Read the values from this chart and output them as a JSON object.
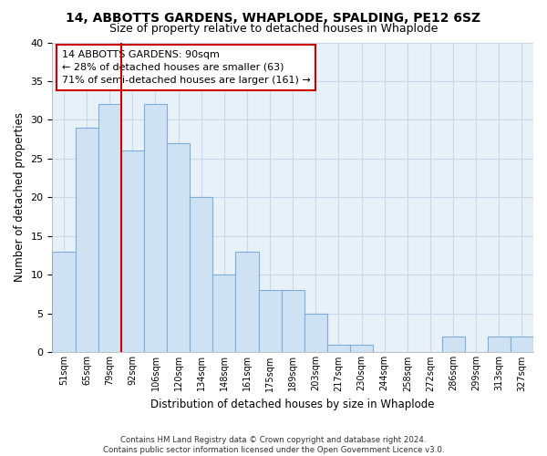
{
  "title1": "14, ABBOTTS GARDENS, WHAPLODE, SPALDING, PE12 6SZ",
  "title2": "Size of property relative to detached houses in Whaplode",
  "xlabel": "Distribution of detached houses by size in Whaplode",
  "ylabel": "Number of detached properties",
  "bar_labels": [
    "51sqm",
    "65sqm",
    "79sqm",
    "92sqm",
    "106sqm",
    "120sqm",
    "134sqm",
    "148sqm",
    "161sqm",
    "175sqm",
    "189sqm",
    "203sqm",
    "217sqm",
    "230sqm",
    "244sqm",
    "258sqm",
    "272sqm",
    "286sqm",
    "299sqm",
    "313sqm",
    "327sqm"
  ],
  "bar_values": [
    13,
    29,
    32,
    26,
    32,
    27,
    20,
    10,
    13,
    8,
    8,
    5,
    1,
    1,
    0,
    0,
    0,
    2,
    0,
    2,
    2
  ],
  "bar_color": "#cfe2f3",
  "bar_edge_color": "#7dadd9",
  "vline_color": "#cc0000",
  "vline_x_index": 3,
  "ylim": [
    0,
    40
  ],
  "yticks": [
    0,
    5,
    10,
    15,
    20,
    25,
    30,
    35,
    40
  ],
  "annotation_title": "14 ABBOTTS GARDENS: 90sqm",
  "annotation_line1": "← 28% of detached houses are smaller (63)",
  "annotation_line2": "71% of semi-detached houses are larger (161) →",
  "footer1": "Contains HM Land Registry data © Crown copyright and database right 2024.",
  "footer2": "Contains public sector information licensed under the Open Government Licence v3.0.",
  "grid_color": "#c8d8e8",
  "bg_color": "#e8f0f8"
}
